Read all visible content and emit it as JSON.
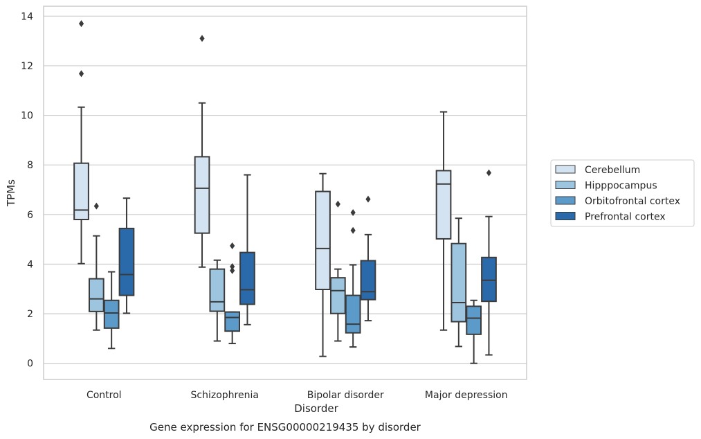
{
  "caption": "Gene expression for ENSG00000219435 by disorder",
  "chart_data": {
    "type": "box",
    "xlabel": "Disorder",
    "ylabel": "TPMs",
    "ylim": [
      -0.65,
      14.4
    ],
    "yticks": [
      0,
      2,
      4,
      6,
      8,
      10,
      12,
      14
    ],
    "grid": true,
    "legend_position": "right",
    "categories": [
      "Control",
      "Schizophrenia",
      "Bipolar disorder",
      "Major depression"
    ],
    "series": [
      {
        "name": "Cerebellum",
        "color": "#d3e3f2",
        "boxes": [
          {
            "whislo": 4.02,
            "q1": 5.8,
            "med": 6.18,
            "q3": 8.07,
            "whishi": 10.33,
            "fliers": [
              11.68,
              13.7
            ]
          },
          {
            "whislo": 3.88,
            "q1": 5.25,
            "med": 7.06,
            "q3": 8.33,
            "whishi": 10.5,
            "fliers": [
              13.1
            ]
          },
          {
            "whislo": 0.28,
            "q1": 2.98,
            "med": 4.63,
            "q3": 6.93,
            "whishi": 7.65,
            "fliers": []
          },
          {
            "whislo": 1.34,
            "q1": 5.02,
            "med": 7.23,
            "q3": 7.77,
            "whishi": 10.14,
            "fliers": []
          }
        ]
      },
      {
        "name": "Hipppocampus",
        "color": "#9dc5df",
        "boxes": [
          {
            "whislo": 1.34,
            "q1": 2.09,
            "med": 2.6,
            "q3": 3.41,
            "whishi": 5.14,
            "fliers": [
              6.34
            ]
          },
          {
            "whislo": 0.9,
            "q1": 2.1,
            "med": 2.48,
            "q3": 3.8,
            "whishi": 4.16,
            "fliers": []
          },
          {
            "whislo": 0.9,
            "q1": 2.01,
            "med": 2.93,
            "q3": 3.45,
            "whishi": 3.8,
            "fliers": [
              6.42
            ]
          },
          {
            "whislo": 0.68,
            "q1": 1.68,
            "med": 2.45,
            "q3": 4.83,
            "whishi": 5.85,
            "fliers": []
          }
        ]
      },
      {
        "name": "Orbitofrontal cortex",
        "color": "#5c9bc9",
        "boxes": [
          {
            "whislo": 0.6,
            "q1": 1.42,
            "med": 2.03,
            "q3": 2.54,
            "whishi": 3.69,
            "fliers": []
          },
          {
            "whislo": 0.8,
            "q1": 1.3,
            "med": 1.85,
            "q3": 2.07,
            "whishi": 2.07,
            "fliers": [
              3.74,
              3.9,
              4.74
            ]
          },
          {
            "whislo": 0.66,
            "q1": 1.23,
            "med": 1.58,
            "q3": 2.74,
            "whishi": 3.97,
            "fliers": [
              5.36,
              6.08
            ]
          },
          {
            "whislo": 0.0,
            "q1": 1.17,
            "med": 1.82,
            "q3": 2.3,
            "whishi": 2.54,
            "fliers": []
          }
        ]
      },
      {
        "name": "Prefrontal cortex",
        "color": "#2a6aaa",
        "boxes": [
          {
            "whislo": 2.02,
            "q1": 2.74,
            "med": 3.58,
            "q3": 5.44,
            "whishi": 6.66,
            "fliers": []
          },
          {
            "whislo": 1.56,
            "q1": 2.38,
            "med": 2.97,
            "q3": 4.47,
            "whishi": 7.6,
            "fliers": []
          },
          {
            "whislo": 1.72,
            "q1": 2.57,
            "med": 2.89,
            "q3": 4.14,
            "whishi": 5.19,
            "fliers": [
              6.62
            ]
          },
          {
            "whislo": 0.34,
            "q1": 2.5,
            "med": 3.35,
            "q3": 4.27,
            "whishi": 5.92,
            "fliers": [
              7.68
            ]
          }
        ]
      }
    ]
  }
}
